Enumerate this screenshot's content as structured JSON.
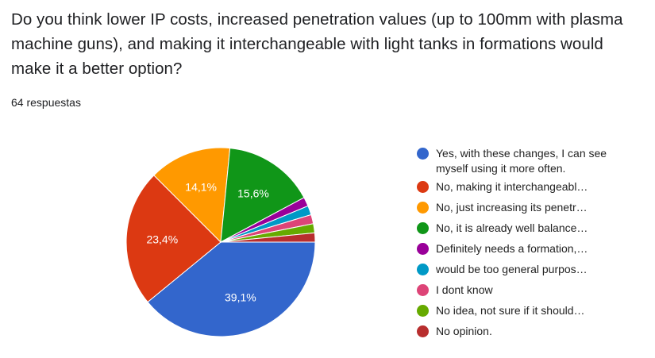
{
  "question": {
    "title": "Do you think lower IP costs, increased penetration values (up to 100mm with plasma machine guns), and making it interchangeable with light tanks in formations would make it a better option?",
    "responses": "64 respuestas"
  },
  "chart_data": {
    "type": "pie",
    "title": "",
    "total": 64,
    "categories": [
      "Yes, with these changes, I can see myself using it more often.",
      "No, making it interchangeabl…",
      "No, just increasing its penetr…",
      "No, it is already well balance…",
      "Definitely needs a formation,…",
      "would be too general purpos…",
      "I dont know",
      "No idea, not sure if it should…",
      "No opinion."
    ],
    "values": [
      25,
      15,
      9,
      10,
      1,
      1,
      1,
      1,
      1
    ],
    "percent_labels": [
      "39,1%",
      "23,4%",
      "14,1%",
      "15,6%",
      "",
      "",
      "",
      "",
      ""
    ],
    "colors": [
      "#3366cc",
      "#dc3912",
      "#ff9900",
      "#109618",
      "#990099",
      "#0099c6",
      "#dd4477",
      "#66aa00",
      "#b82e2e"
    ],
    "legend_position": "right"
  }
}
